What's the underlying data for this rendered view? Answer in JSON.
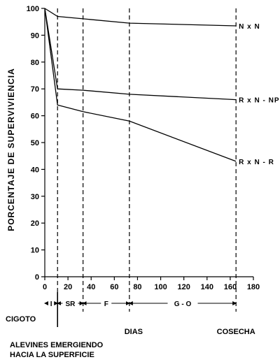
{
  "chart_data": {
    "type": "line",
    "title": "",
    "xlabel": "DIAS",
    "ylabel": "PORCENTAJE DE SUPERVIVIENCIA",
    "xlim": [
      0,
      180
    ],
    "ylim": [
      0,
      100
    ],
    "xticks": [
      0,
      20,
      40,
      60,
      80,
      100,
      120,
      140,
      160,
      180
    ],
    "yticks": [
      0,
      10,
      20,
      30,
      40,
      50,
      60,
      70,
      80,
      90,
      100
    ],
    "grid": false,
    "series": [
      {
        "name": "N x N",
        "x": [
          0,
          11,
          73,
          165
        ],
        "y": [
          100,
          97,
          94.5,
          93.5
        ]
      },
      {
        "name": "R x N - NP",
        "x": [
          0,
          11,
          33,
          73,
          165
        ],
        "y": [
          100,
          70,
          69.5,
          68,
          66
        ]
      },
      {
        "name": "R x N - R",
        "x": [
          0,
          11,
          33,
          73,
          165
        ],
        "y": [
          100,
          64,
          61.5,
          58,
          43
        ]
      }
    ],
    "phase_boundaries": [
      0,
      11,
      33,
      73,
      165
    ],
    "phases": [
      {
        "label": "I",
        "start": 0,
        "end": 11
      },
      {
        "label": "SR",
        "start": 11,
        "end": 33
      },
      {
        "label": "F",
        "start": 33,
        "end": 73
      },
      {
        "label": "G - O",
        "start": 73,
        "end": 165
      }
    ],
    "annotations": {
      "cigoto": "CIGOTO",
      "alevines_line1": "ALEVINES EMERGIENDO",
      "alevines_line2": "HACIA LA SUPERFICIE",
      "cosecha": "COSECHA"
    }
  }
}
